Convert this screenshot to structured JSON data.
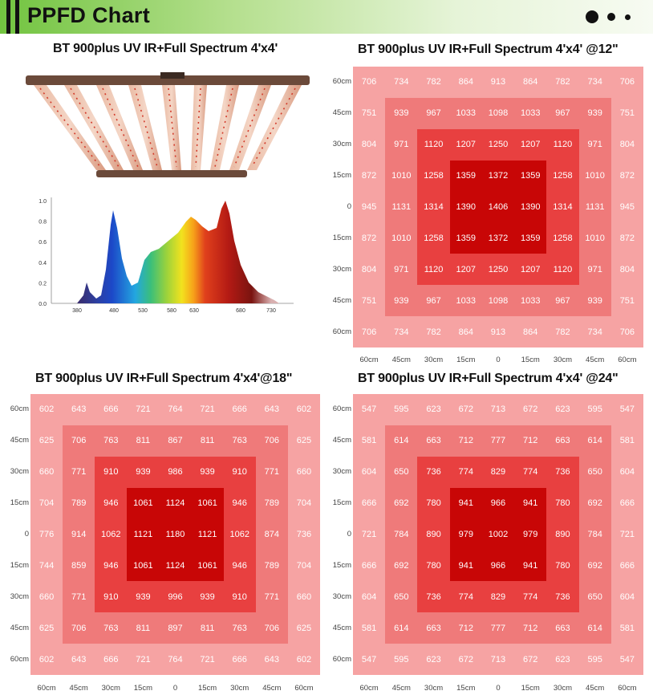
{
  "header": {
    "title": "PPFD Chart"
  },
  "product": {
    "title": "BT 900plus UV IR+Full Spectrum 4'x4'"
  },
  "spectrum": {
    "y_ticks": [
      "1.0",
      "0.8",
      "0.6",
      "0.4",
      "0.2",
      "0.0"
    ],
    "x_ticks": [
      "380",
      "480",
      "530",
      "580",
      "630",
      "680",
      "730"
    ]
  },
  "colors": {
    "level1": "#f6a3a3",
    "level2": "#ef7a7a",
    "level3": "#e84040",
    "level4": "#c80606",
    "header_green": "#72c440"
  },
  "chart_data": [
    {
      "type": "table",
      "title": "BT 900plus UV IR+Full Spectrum 4'x4' @12\"",
      "row_labels": [
        "60cm",
        "45cm",
        "30cm",
        "15cm",
        "0",
        "15cm",
        "30cm",
        "45cm",
        "60cm"
      ],
      "col_labels": [
        "60cm",
        "45cm",
        "30cm",
        "15cm",
        "0",
        "15cm",
        "30cm",
        "45cm",
        "60cm"
      ],
      "rows": [
        [
          "706",
          "734",
          "782",
          "864",
          "913",
          "864",
          "782",
          "734",
          "706"
        ],
        [
          "751",
          "939",
          "967",
          "1033",
          "1098",
          "1033",
          "967",
          "939",
          "751"
        ],
        [
          "804",
          "971",
          "1120",
          "1207",
          "1250",
          "1207",
          "1120",
          "971",
          "804"
        ],
        [
          "872",
          "1010",
          "1258",
          "1359",
          "1372",
          "1359",
          "1258",
          "1010",
          "872"
        ],
        [
          "945",
          "1131",
          "1314",
          "1390",
          "1406",
          "1390",
          "1314",
          "1131",
          "945"
        ],
        [
          "872",
          "1010",
          "1258",
          "1359",
          "1372",
          "1359",
          "1258",
          "1010",
          "872"
        ],
        [
          "804",
          "971",
          "1120",
          "1207",
          "1250",
          "1207",
          "1120",
          "971",
          "804"
        ],
        [
          "751",
          "939",
          "967",
          "1033",
          "1098",
          "1033",
          "967",
          "939",
          "751"
        ],
        [
          "706",
          "734",
          "782",
          "864",
          "913",
          "864",
          "782",
          "734",
          "706"
        ]
      ]
    },
    {
      "type": "table",
      "title": "BT 900plus UV IR+Full Spectrum 4'x4'@18\"",
      "row_labels": [
        "60cm",
        "45cm",
        "30cm",
        "15cm",
        "0",
        "15cm",
        "30cm",
        "45cm",
        "60cm"
      ],
      "col_labels": [
        "60cm",
        "45cm",
        "30cm",
        "15cm",
        "0",
        "15cm",
        "30cm",
        "45cm",
        "60cm"
      ],
      "rows": [
        [
          "602",
          "643",
          "666",
          "721",
          "764",
          "721",
          "666",
          "643",
          "602"
        ],
        [
          "625",
          "706",
          "763",
          "811",
          "867",
          "811",
          "763",
          "706",
          "625"
        ],
        [
          "660",
          "771",
          "910",
          "939",
          "986",
          "939",
          "910",
          "771",
          "660"
        ],
        [
          "704",
          "789",
          "946",
          "1061",
          "1124",
          "1061",
          "946",
          "789",
          "704"
        ],
        [
          "776",
          "914",
          "1062",
          "1121",
          "1180",
          "1121",
          "1062",
          "874",
          "736"
        ],
        [
          "744",
          "859",
          "946",
          "1061",
          "1124",
          "1061",
          "946",
          "789",
          "704"
        ],
        [
          "660",
          "771",
          "910",
          "939",
          "996",
          "939",
          "910",
          "771",
          "660"
        ],
        [
          "625",
          "706",
          "763",
          "811",
          "897",
          "811",
          "763",
          "706",
          "625"
        ],
        [
          "602",
          "643",
          "666",
          "721",
          "764",
          "721",
          "666",
          "643",
          "602"
        ]
      ]
    },
    {
      "type": "table",
      "title": "BT 900plus UV IR+Full Spectrum 4'x4' @24\"",
      "row_labels": [
        "60cm",
        "45cm",
        "30cm",
        "15cm",
        "0",
        "15cm",
        "30cm",
        "45cm",
        "60cm"
      ],
      "col_labels": [
        "60cm",
        "45cm",
        "30cm",
        "15cm",
        "0",
        "15cm",
        "30cm",
        "45cm",
        "60cm"
      ],
      "rows": [
        [
          "547",
          "595",
          "623",
          "672",
          "713",
          "672",
          "623",
          "595",
          "547"
        ],
        [
          "581",
          "614",
          "663",
          "712",
          "777",
          "712",
          "663",
          "614",
          "581"
        ],
        [
          "604",
          "650",
          "736",
          "774",
          "829",
          "774",
          "736",
          "650",
          "604"
        ],
        [
          "666",
          "692",
          "780",
          "941",
          "966",
          "941",
          "780",
          "692",
          "666"
        ],
        [
          "721",
          "784",
          "890",
          "979",
          "1002",
          "979",
          "890",
          "784",
          "721"
        ],
        [
          "666",
          "692",
          "780",
          "941",
          "966",
          "941",
          "780",
          "692",
          "666"
        ],
        [
          "604",
          "650",
          "736",
          "774",
          "829",
          "774",
          "736",
          "650",
          "604"
        ],
        [
          "581",
          "614",
          "663",
          "712",
          "777",
          "712",
          "663",
          "614",
          "581"
        ],
        [
          "547",
          "595",
          "623",
          "672",
          "713",
          "672",
          "623",
          "595",
          "547"
        ]
      ]
    }
  ]
}
